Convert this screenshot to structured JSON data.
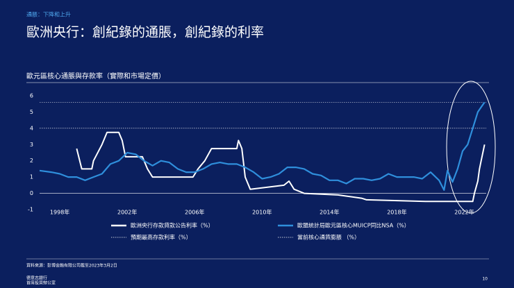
{
  "header": {
    "kicker": "通脹：下降和上升",
    "title": "歐洲央行：創紀錄的通脹，創紀錄的利率"
  },
  "chart_data": {
    "type": "line",
    "title": "歐元區核心通脹與存款率（實際和市場定價）",
    "xlim": [
      1996.8,
      2023.3
    ],
    "xticks": [
      {
        "value": 1998,
        "label": "1998年"
      },
      {
        "value": 2002,
        "label": "2002年"
      },
      {
        "value": 2006,
        "label": "2006年"
      },
      {
        "value": 2010,
        "label": "2010年"
      },
      {
        "value": 2014,
        "label": "2014年"
      },
      {
        "value": 2018,
        "label": "2018年"
      },
      {
        "value": 2022,
        "label": "2022年"
      }
    ],
    "ylim": [
      -1,
      6
    ],
    "yticks": [
      -1,
      0,
      1,
      2,
      3,
      4,
      5,
      6
    ],
    "series": [
      {
        "name": "歐洲央行存款貸款公告利率（%）",
        "color": "#ffffff",
        "x": [
          1999.0,
          1999.3,
          1999.9,
          2000.0,
          2000.5,
          2000.8,
          2001.5,
          2001.7,
          2001.9,
          2002.9,
          2003.2,
          2003.5,
          2005.9,
          2006.2,
          2006.6,
          2007.0,
          2008.5,
          2008.6,
          2008.8,
          2009.0,
          2009.3,
          2011.3,
          2011.6,
          2011.9,
          2012.5,
          2014.5,
          2015.9,
          2016.2,
          2019.7,
          2022.5,
          2022.6,
          2022.8,
          2022.9,
          2023.0,
          2023.2
        ],
        "values": [
          2.75,
          1.5,
          1.5,
          2.0,
          3.0,
          3.75,
          3.75,
          3.25,
          2.25,
          2.25,
          1.5,
          1.0,
          1.0,
          1.5,
          2.0,
          2.75,
          2.75,
          3.25,
          2.75,
          1.0,
          0.25,
          0.5,
          0.75,
          0.25,
          0.0,
          -0.1,
          -0.3,
          -0.4,
          -0.5,
          -0.5,
          0.0,
          0.75,
          1.5,
          2.0,
          3.0
        ]
      },
      {
        "name": "歐盟統計局歐元區核心MUICP同比NSA（%）",
        "color": "#2f8fdc",
        "x": [
          1996.8,
          1997.5,
          1998.0,
          1998.5,
          1999.0,
          1999.5,
          2000.0,
          2000.5,
          2001.0,
          2001.5,
          2002.0,
          2002.5,
          2003.0,
          2003.5,
          2004.0,
          2004.5,
          2005.0,
          2005.5,
          2006.0,
          2006.5,
          2007.0,
          2007.5,
          2008.0,
          2008.5,
          2009.0,
          2009.5,
          2010.0,
          2010.5,
          2011.0,
          2011.5,
          2012.0,
          2012.5,
          2013.0,
          2013.5,
          2014.0,
          2014.5,
          2015.0,
          2015.5,
          2016.0,
          2016.5,
          2017.0,
          2017.5,
          2018.0,
          2018.5,
          2019.0,
          2019.5,
          2020.0,
          2020.5,
          2020.8,
          2021.0,
          2021.3,
          2021.6,
          2021.9,
          2022.2,
          2022.5,
          2022.8,
          2023.0,
          2023.2
        ],
        "values": [
          1.4,
          1.3,
          1.2,
          1.0,
          1.0,
          0.8,
          1.0,
          1.2,
          1.8,
          2.0,
          2.5,
          2.4,
          2.0,
          1.7,
          2.0,
          1.9,
          1.5,
          1.3,
          1.3,
          1.5,
          1.8,
          1.9,
          1.8,
          1.8,
          1.6,
          1.3,
          0.9,
          1.0,
          1.2,
          1.6,
          1.6,
          1.5,
          1.2,
          1.1,
          0.8,
          0.8,
          0.6,
          0.9,
          0.9,
          0.8,
          0.9,
          1.2,
          1.0,
          1.0,
          1.0,
          0.9,
          1.3,
          0.8,
          0.2,
          1.4,
          0.7,
          1.5,
          2.6,
          3.0,
          4.0,
          5.0,
          5.3,
          5.6
        ]
      }
    ],
    "reference_lines": [
      {
        "name": "預期最高存款利率（%）",
        "value": 4.0,
        "color": "#ffffff"
      },
      {
        "name": "當前核心通貨膨脹 （%）",
        "value": 5.6,
        "color": "#ffffff"
      }
    ]
  },
  "footer": {
    "source": "資料來源：彭博金融有限公司截至2023年3月2日",
    "org_line1": "德意志銀行",
    "org_line2": "首席投資辦公室",
    "page": "10"
  }
}
